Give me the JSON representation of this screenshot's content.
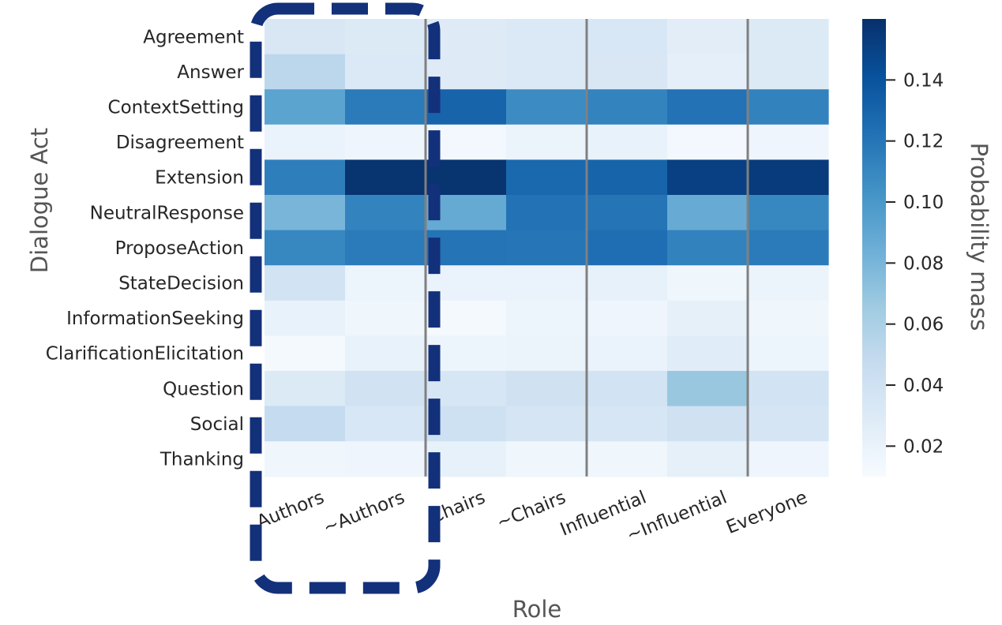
{
  "chart_data": {
    "type": "heatmap",
    "title": "",
    "xlabel": "Role",
    "ylabel": "Dialogue Act",
    "colorbar_label": "Probability mass",
    "colormap": "Blues",
    "color_range": [
      0.01,
      0.16
    ],
    "colorbar_ticks": [
      {
        "value": 0.02,
        "label": "0.02"
      },
      {
        "value": 0.04,
        "label": "0.04"
      },
      {
        "value": 0.06,
        "label": "0.06"
      },
      {
        "value": 0.08,
        "label": "0.08"
      },
      {
        "value": 0.1,
        "label": "0.10"
      },
      {
        "value": 0.12,
        "label": "0.12"
      },
      {
        "value": 0.14,
        "label": "0.14"
      }
    ],
    "x_categories": [
      "Authors",
      "~Authors",
      "Chairs",
      "~Chairs",
      "Influential",
      "~Influential",
      "Everyone"
    ],
    "y_categories": [
      "Agreement",
      "Answer",
      "ContextSetting",
      "Disagreement",
      "Extension",
      "NeutralResponse",
      "ProposeAction",
      "StateDecision",
      "InformationSeeking",
      "ClarificationElicitation",
      "Question",
      "Social",
      "Thanking"
    ],
    "values": [
      [
        0.033,
        0.03,
        0.029,
        0.031,
        0.034,
        0.026,
        0.03
      ],
      [
        0.052,
        0.031,
        0.029,
        0.031,
        0.033,
        0.024,
        0.03
      ],
      [
        0.092,
        0.117,
        0.13,
        0.107,
        0.112,
        0.122,
        0.113
      ],
      [
        0.02,
        0.017,
        0.014,
        0.019,
        0.021,
        0.014,
        0.017
      ],
      [
        0.115,
        0.158,
        0.158,
        0.128,
        0.13,
        0.151,
        0.154
      ],
      [
        0.08,
        0.112,
        0.088,
        0.122,
        0.121,
        0.087,
        0.11
      ],
      [
        0.11,
        0.117,
        0.121,
        0.12,
        0.124,
        0.113,
        0.117
      ],
      [
        0.038,
        0.018,
        0.02,
        0.02,
        0.022,
        0.016,
        0.019
      ],
      [
        0.021,
        0.016,
        0.012,
        0.018,
        0.017,
        0.023,
        0.016
      ],
      [
        0.012,
        0.021,
        0.018,
        0.019,
        0.02,
        0.027,
        0.018
      ],
      [
        0.03,
        0.039,
        0.035,
        0.04,
        0.038,
        0.068,
        0.038
      ],
      [
        0.048,
        0.034,
        0.041,
        0.036,
        0.035,
        0.04,
        0.036
      ],
      [
        0.016,
        0.017,
        0.022,
        0.016,
        0.016,
        0.023,
        0.017
      ]
    ],
    "group_separators_after_column": [
      "~Authors",
      "~Chairs",
      "~Influential"
    ],
    "highlight": {
      "columns": [
        "Authors",
        "~Authors"
      ],
      "style": "dashed rounded box",
      "color": "#13307a"
    },
    "grid": false,
    "legend": "colorbar-right"
  }
}
